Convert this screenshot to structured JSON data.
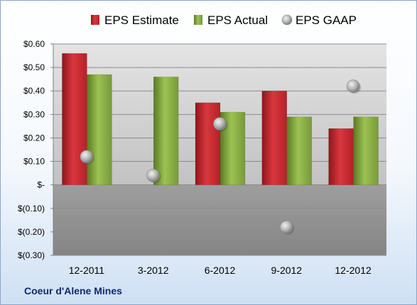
{
  "company": "Coeur d'Alene Mines",
  "chart_data": {
    "type": "bar",
    "categories": [
      "12-2011",
      "3-2012",
      "6-2012",
      "9-2012",
      "12-2012"
    ],
    "series": [
      {
        "name": "EPS Estimate",
        "kind": "bar",
        "color": "#c0262c",
        "values": [
          0.56,
          null,
          0.35,
          0.4,
          0.24
        ]
      },
      {
        "name": "EPS Actual",
        "kind": "bar",
        "color": "#7fa23a",
        "values": [
          0.47,
          0.46,
          0.31,
          0.29,
          0.29
        ]
      },
      {
        "name": "EPS GAAP",
        "kind": "marker",
        "color": "#b4b4b4",
        "values": [
          0.12,
          0.04,
          0.26,
          -0.18,
          0.42
        ]
      }
    ],
    "yticks": [
      "$0.60",
      "$0.50",
      "$0.40",
      "$0.30",
      "$0.20",
      "$0.10",
      "$-",
      "$(0.10)",
      "$(0.20)",
      "$(0.30)"
    ],
    "ylim": [
      -0.3,
      0.6
    ],
    "grid": true,
    "legend_position": "top"
  }
}
